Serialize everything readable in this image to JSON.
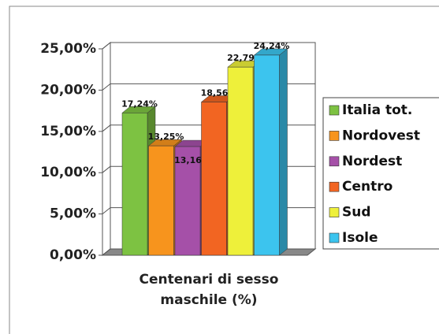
{
  "chart_data": {
    "type": "bar3d",
    "categories": [
      "Centenari di sesso maschile (%)"
    ],
    "series": [
      {
        "name": "Italia tot.",
        "color": "#7dc242",
        "values": [
          17.24
        ],
        "value_labels": [
          "17,24%"
        ]
      },
      {
        "name": "Nordovest",
        "color": "#f7941d",
        "values": [
          13.25
        ],
        "value_labels": [
          "13,25%"
        ]
      },
      {
        "name": "Nordest",
        "color": "#a550a8",
        "values": [
          13.16
        ],
        "value_labels": [
          "13,16%"
        ]
      },
      {
        "name": "Centro",
        "color": "#f26522",
        "values": [
          18.56
        ],
        "value_labels": [
          "18,56%"
        ]
      },
      {
        "name": "Sud",
        "color": "#eef03a",
        "values": [
          22.79
        ],
        "value_labels": [
          "22,79%"
        ]
      },
      {
        "name": "Isole",
        "color": "#3cc4ee",
        "values": [
          24.24
        ],
        "value_labels": [
          "24,24%"
        ]
      }
    ],
    "ylim": [
      0,
      25
    ],
    "yticks": [
      {
        "value": 0,
        "label": "0,00%"
      },
      {
        "value": 5,
        "label": "5,00%"
      },
      {
        "value": 10,
        "label": "10,00%"
      },
      {
        "value": 15,
        "label": "15,00%"
      },
      {
        "value": 20,
        "label": "20,00%"
      },
      {
        "value": 25,
        "label": "25,00%"
      }
    ],
    "grid": true
  }
}
